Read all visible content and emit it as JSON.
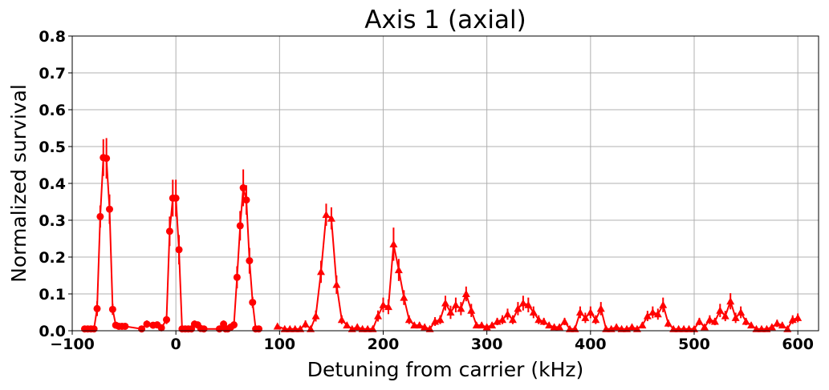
{
  "chart_data": {
    "type": "scatter",
    "title": "Axis 1 (axial)",
    "xlabel": "Detuning from carrier (kHz)",
    "ylabel": "Normalized survival",
    "xlim": [
      -100,
      620
    ],
    "ylim": [
      0,
      0.8
    ],
    "xticks": [
      -100,
      0,
      100,
      200,
      300,
      400,
      500,
      600
    ],
    "yticks": [
      0.0,
      0.1,
      0.2,
      0.3,
      0.4,
      0.5,
      0.6,
      0.7,
      0.8
    ],
    "xtick_labels": [
      "−100",
      "0",
      "100",
      "200",
      "300",
      "400",
      "500",
      "600"
    ],
    "ytick_labels": [
      "0.0",
      "0.1",
      "0.2",
      "0.3",
      "0.4",
      "0.5",
      "0.6",
      "0.7",
      "0.8"
    ],
    "grid": true,
    "legend": "none",
    "series": [
      {
        "marker": "circle",
        "color": "#ff0000",
        "x": [
          -88,
          -85,
          -82,
          -79,
          -76,
          -73,
          -70,
          -67,
          -64,
          -61,
          -58,
          -55,
          -52,
          -49,
          -33,
          -28,
          -22,
          -18,
          -14,
          -9,
          -6,
          -3,
          0,
          3,
          6,
          9,
          12,
          15,
          18,
          21,
          24,
          27,
          42,
          46,
          48,
          50,
          53,
          56,
          59,
          62,
          65,
          68,
          71,
          74,
          77,
          80
        ],
        "y": [
          0.005,
          0.005,
          0.005,
          0.005,
          0.06,
          0.31,
          0.47,
          0.468,
          0.33,
          0.058,
          0.015,
          0.012,
          0.012,
          0.012,
          0.005,
          0.018,
          0.015,
          0.016,
          0.008,
          0.03,
          0.27,
          0.36,
          0.36,
          0.22,
          0.005,
          0.005,
          0.005,
          0.005,
          0.018,
          0.016,
          0.006,
          0.005,
          0.005,
          0.018,
          0.005,
          0.005,
          0.01,
          0.016,
          0.145,
          0.285,
          0.388,
          0.355,
          0.19,
          0.077,
          0.005,
          0.005
        ],
        "yerr": [
          0.005,
          0.005,
          0.005,
          0.005,
          0.02,
          0.03,
          0.05,
          0.055,
          0.04,
          0.015,
          0.008,
          0.006,
          0.006,
          0.006,
          0.005,
          0.01,
          0.008,
          0.008,
          0.006,
          0.012,
          0.04,
          0.05,
          0.05,
          0.04,
          0.005,
          0.005,
          0.005,
          0.005,
          0.01,
          0.008,
          0.005,
          0.005,
          0.005,
          0.01,
          0.005,
          0.005,
          0.006,
          0.01,
          0.03,
          0.04,
          0.05,
          0.04,
          0.035,
          0.015,
          0.005,
          0.005
        ]
      },
      {
        "marker": "triangle",
        "color": "#ff0000",
        "x": [
          98,
          105,
          110,
          115,
          120,
          125,
          130,
          135,
          140,
          145,
          150,
          155,
          160,
          165,
          170,
          175,
          180,
          185,
          190,
          195,
          200,
          205,
          210,
          215,
          220,
          225,
          230,
          235,
          240,
          245,
          250,
          255,
          260,
          265,
          270,
          275,
          280,
          285,
          290,
          295,
          300,
          305,
          310,
          315,
          320,
          325,
          330,
          335,
          340,
          345,
          350,
          355,
          360,
          365,
          370,
          375,
          380,
          385,
          390,
          395,
          400,
          405,
          410,
          415,
          420,
          425,
          430,
          435,
          440,
          445,
          450,
          455,
          460,
          465,
          470,
          475,
          480,
          485,
          490,
          495,
          500,
          505,
          510,
          515,
          520,
          525,
          530,
          535,
          540,
          545,
          550,
          555,
          560,
          565,
          570,
          575,
          580,
          585,
          590,
          595,
          600
        ],
        "y": [
          0.012,
          0.005,
          0.005,
          0.005,
          0.005,
          0.018,
          0.005,
          0.04,
          0.16,
          0.315,
          0.305,
          0.125,
          0.03,
          0.015,
          0.005,
          0.01,
          0.005,
          0.005,
          0.005,
          0.04,
          0.07,
          0.065,
          0.235,
          0.165,
          0.09,
          0.03,
          0.015,
          0.015,
          0.01,
          0.005,
          0.025,
          0.03,
          0.075,
          0.05,
          0.07,
          0.06,
          0.1,
          0.055,
          0.015,
          0.015,
          0.01,
          0.015,
          0.025,
          0.03,
          0.045,
          0.03,
          0.06,
          0.075,
          0.07,
          0.05,
          0.03,
          0.025,
          0.015,
          0.01,
          0.01,
          0.025,
          0.005,
          0.005,
          0.05,
          0.035,
          0.05,
          0.03,
          0.06,
          0.005,
          0.005,
          0.01,
          0.005,
          0.005,
          0.01,
          0.005,
          0.015,
          0.04,
          0.05,
          0.045,
          0.07,
          0.02,
          0.005,
          0.005,
          0.005,
          0.005,
          0.005,
          0.025,
          0.01,
          0.03,
          0.025,
          0.055,
          0.04,
          0.08,
          0.035,
          0.05,
          0.025,
          0.015,
          0.005,
          0.005,
          0.005,
          0.01,
          0.02,
          0.015,
          0.005,
          0.03,
          0.035
        ],
        "yerr": [
          0.005,
          0.005,
          0.005,
          0.005,
          0.005,
          0.01,
          0.005,
          0.015,
          0.03,
          0.03,
          0.03,
          0.025,
          0.012,
          0.008,
          0.005,
          0.006,
          0.005,
          0.005,
          0.005,
          0.015,
          0.02,
          0.02,
          0.045,
          0.03,
          0.02,
          0.012,
          0.008,
          0.008,
          0.006,
          0.005,
          0.012,
          0.012,
          0.02,
          0.018,
          0.02,
          0.018,
          0.02,
          0.018,
          0.008,
          0.008,
          0.006,
          0.008,
          0.01,
          0.012,
          0.015,
          0.012,
          0.018,
          0.02,
          0.02,
          0.016,
          0.012,
          0.01,
          0.008,
          0.006,
          0.006,
          0.01,
          0.005,
          0.005,
          0.016,
          0.014,
          0.016,
          0.012,
          0.018,
          0.005,
          0.005,
          0.006,
          0.005,
          0.005,
          0.006,
          0.005,
          0.008,
          0.014,
          0.016,
          0.015,
          0.02,
          0.01,
          0.005,
          0.005,
          0.005,
          0.005,
          0.005,
          0.01,
          0.006,
          0.012,
          0.01,
          0.018,
          0.014,
          0.022,
          0.014,
          0.016,
          0.01,
          0.008,
          0.005,
          0.005,
          0.005,
          0.006,
          0.01,
          0.008,
          0.005,
          0.012,
          0.012
        ]
      }
    ]
  }
}
